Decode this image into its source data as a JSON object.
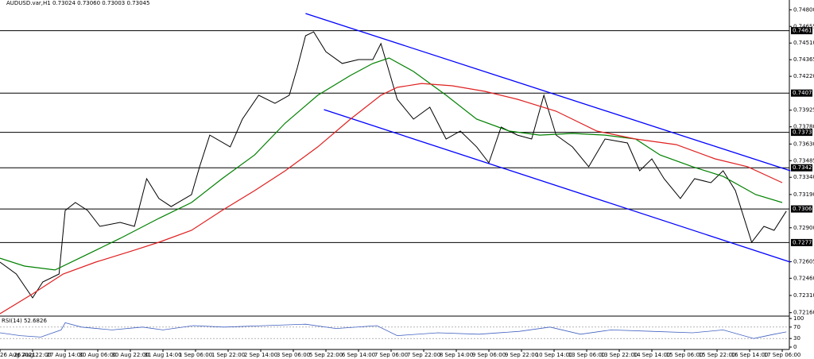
{
  "chart_data": [
    {
      "type": "line",
      "title": "AUDUSD.var,H1  0.73024 0.73060 0.73003 0.73045",
      "xlim": [
        0,
        387.5
      ],
      "ylim": [
        0.7213,
        0.7483
      ],
      "xticks": [
        {
          "value": 0,
          "label": "26 Aug 2021"
        },
        {
          "value": 16,
          "label": "26 Aug 22:00"
        },
        {
          "value": 32,
          "label": "27 Aug 14:00"
        },
        {
          "value": 48,
          "label": "30 Aug 06:00"
        },
        {
          "value": 64,
          "label": "30 Aug 22:00"
        },
        {
          "value": 80,
          "label": "31 Aug 14:00"
        },
        {
          "value": 96,
          "label": "1 Sep 06:00"
        },
        {
          "value": 112,
          "label": "1 Sep 22:00"
        },
        {
          "value": 128,
          "label": "2 Sep 14:00"
        },
        {
          "value": 144,
          "label": "3 Sep 06:00"
        },
        {
          "value": 160,
          "label": "5 Sep 22:00"
        },
        {
          "value": 176,
          "label": "6 Sep 14:00"
        },
        {
          "value": 192,
          "label": "7 Sep 06:00"
        },
        {
          "value": 208,
          "label": "7 Sep 22:00"
        },
        {
          "value": 224,
          "label": "8 Sep 14:00"
        },
        {
          "value": 240,
          "label": "9 Sep 06:00"
        },
        {
          "value": 256,
          "label": "9 Sep 22:00"
        },
        {
          "value": 272,
          "label": "10 Sep 14:00"
        },
        {
          "value": 288,
          "label": "13 Sep 06:00"
        },
        {
          "value": 304,
          "label": "13 Sep 22:00"
        },
        {
          "value": 320,
          "label": "14 Sep 14:00"
        },
        {
          "value": 336,
          "label": "15 Sep 06:00"
        },
        {
          "value": 352,
          "label": "15 Sep 22:00"
        },
        {
          "value": 368,
          "label": "16 Sep 14:00"
        },
        {
          "value": 384,
          "label": "17 Sep 06:00"
        }
      ],
      "yticks": [
        {
          "value": 0.748,
          "label": "0.74800"
        },
        {
          "value": 0.74655,
          "label": "0.74655"
        },
        {
          "value": 0.7451,
          "label": "0.74510"
        },
        {
          "value": 0.74365,
          "label": "0.74365"
        },
        {
          "value": 0.7422,
          "label": "0.74220"
        },
        {
          "value": 0.73925,
          "label": "0.73925"
        },
        {
          "value": 0.7378,
          "label": "0.73780"
        },
        {
          "value": 0.7363,
          "label": "0.73630"
        },
        {
          "value": 0.73485,
          "label": "0.73485"
        },
        {
          "value": 0.7334,
          "label": "0.73340"
        },
        {
          "value": 0.7319,
          "label": "0.73190"
        },
        {
          "value": 0.729,
          "label": "0.72900"
        },
        {
          "value": 0.72605,
          "label": "0.72605"
        },
        {
          "value": 0.7246,
          "label": "0.72460"
        },
        {
          "value": 0.7231,
          "label": "0.72310"
        },
        {
          "value": 0.7216,
          "label": "0.72160"
        }
      ],
      "series": [
        {
          "color": "#000000",
          "x": [
            0,
            8,
            16,
            21,
            29,
            32,
            37,
            43,
            49,
            59,
            66,
            72,
            78,
            84,
            94,
            98,
            103,
            113,
            119,
            127,
            135,
            142,
            146,
            150,
            154,
            160,
            168,
            176,
            183,
            187,
            191,
            195,
            203,
            211,
            219,
            226,
            234,
            240,
            246,
            254,
            261,
            267,
            273,
            281,
            289,
            297,
            308,
            314,
            320,
            326,
            334,
            341,
            349,
            355,
            361,
            369,
            375,
            380,
            386
          ],
          "values": [
            0.72601,
            0.72497,
            0.72289,
            0.72428,
            0.72497,
            0.73051,
            0.7312,
            0.73051,
            0.72912,
            0.72947,
            0.72912,
            0.73328,
            0.73155,
            0.73085,
            0.73189,
            0.73432,
            0.73708,
            0.73605,
            0.73847,
            0.74055,
            0.73985,
            0.74055,
            0.74297,
            0.74574,
            0.74608,
            0.74435,
            0.74332,
            0.74366,
            0.74366,
            0.74505,
            0.74262,
            0.7402,
            0.73847,
            0.73951,
            0.73674,
            0.73743,
            0.73605,
            0.73466,
            0.73778,
            0.73708,
            0.73674,
            0.74055,
            0.73708,
            0.73605,
            0.73432,
            0.73674,
            0.73639,
            0.73397,
            0.73501,
            0.73328,
            0.73155,
            0.73328,
            0.73293,
            0.73397,
            0.73224,
            0.72774,
            0.72912,
            0.72878,
            0.73045
          ]
        },
        {
          "color": "#008000",
          "x": [
            0,
            12,
            27,
            39,
            59,
            78,
            94,
            109,
            125,
            140,
            156,
            172,
            183,
            191,
            203,
            219,
            234,
            250,
            265,
            281,
            297,
            312,
            324,
            340,
            355,
            371,
            384
          ],
          "values": [
            0.72635,
            0.72566,
            0.72532,
            0.72635,
            0.72808,
            0.72982,
            0.7312,
            0.73328,
            0.73535,
            0.73812,
            0.74055,
            0.74228,
            0.74332,
            0.7438,
            0.74262,
            0.74055,
            0.73847,
            0.73743,
            0.73708,
            0.73722,
            0.73708,
            0.73674,
            0.73535,
            0.73432,
            0.73348,
            0.73189,
            0.7312
          ]
        },
        {
          "color": "#e02020",
          "x": [
            0,
            16,
            31,
            47,
            66,
            78,
            94,
            109,
            125,
            140,
            156,
            172,
            187,
            195,
            207,
            222,
            238,
            254,
            273,
            293,
            312,
            332,
            351,
            367,
            384
          ],
          "values": [
            0.72151,
            0.72324,
            0.72497,
            0.72601,
            0.72705,
            0.72774,
            0.72878,
            0.73051,
            0.73224,
            0.73397,
            0.73605,
            0.73847,
            0.74055,
            0.74124,
            0.74158,
            0.74138,
            0.74089,
            0.7402,
            0.73916,
            0.73743,
            0.73674,
            0.73625,
            0.73501,
            0.73432,
            0.73293
          ]
        }
      ],
      "levels": [
        0.74618,
        0.74074,
        0.73732,
        0.73423,
        0.73064,
        0.72771
      ],
      "trendlines": [
        {
          "color": "#0000ff",
          "x": [
            150,
            388
          ],
          "values": [
            0.74768,
            0.73397
          ]
        },
        {
          "color": "#0000ff",
          "x": [
            159,
            388
          ],
          "values": [
            0.7393,
            0.72601
          ]
        }
      ]
    },
    {
      "type": "line",
      "title": "RSI(14) 52.6826",
      "ylim": [
        0,
        100
      ],
      "yticks": [
        100,
        70,
        30,
        0
      ],
      "series": [
        {
          "color": "#4060c0",
          "x": [
            0,
            10,
            20,
            30,
            32,
            40,
            55,
            70,
            80,
            95,
            110,
            130,
            150,
            165,
            185,
            195,
            215,
            235,
            255,
            270,
            285,
            300,
            320,
            340,
            355,
            370,
            380,
            386
          ],
          "values": [
            50,
            40,
            35,
            60,
            85,
            70,
            60,
            70,
            60,
            75,
            70,
            75,
            80,
            65,
            75,
            40,
            50,
            45,
            55,
            70,
            45,
            60,
            55,
            50,
            60,
            30,
            45,
            53
          ]
        }
      ]
    }
  ]
}
